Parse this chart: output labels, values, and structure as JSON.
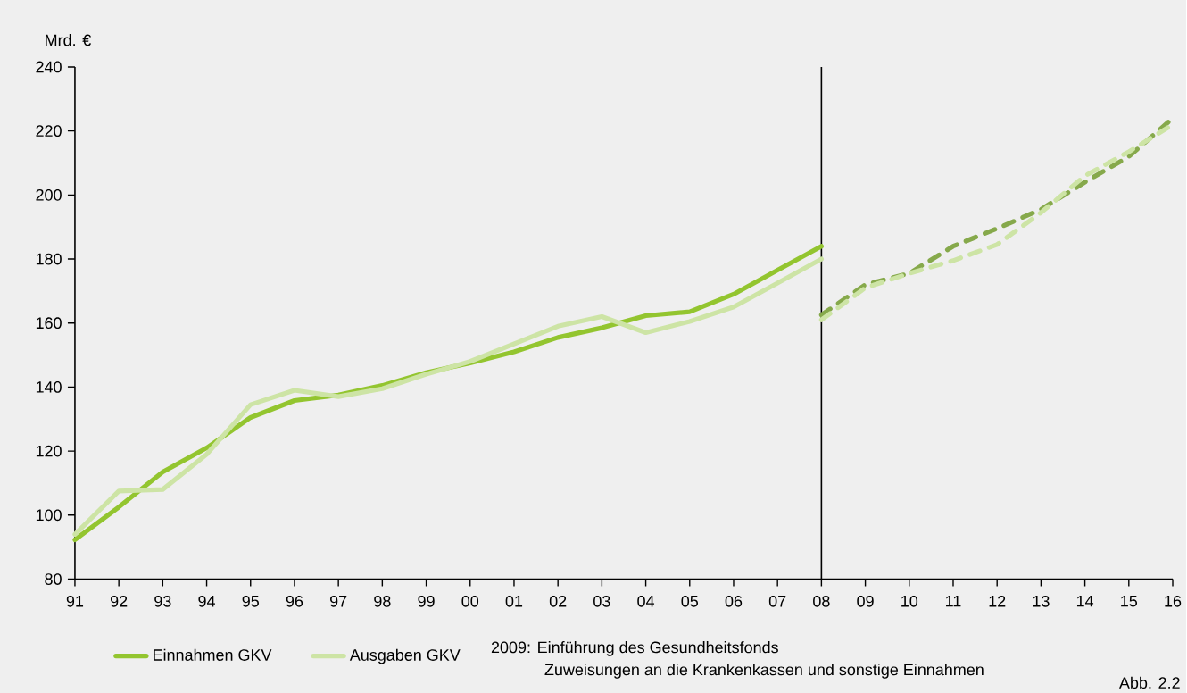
{
  "chart_data": {
    "type": "line",
    "ylabel": "Mrd. €",
    "categories": [
      "91",
      "92",
      "93",
      "94",
      "95",
      "96",
      "97",
      "98",
      "99",
      "00",
      "01",
      "02",
      "03",
      "04",
      "05",
      "06",
      "07",
      "08",
      "09",
      "10",
      "11",
      "12",
      "13",
      "14",
      "15",
      "16"
    ],
    "series": [
      {
        "name": "Einnahmen GKV",
        "color": "#93c52f",
        "line_style": "solid",
        "values": [
          92.3,
          102.5,
          113.5,
          121,
          130.5,
          135.8,
          137.5,
          140.5,
          144.5,
          147.5,
          151,
          155.5,
          158.5,
          162.3,
          163.5,
          169,
          176.5,
          184,
          null,
          null,
          null,
          null,
          null,
          null,
          null,
          null
        ]
      },
      {
        "name": "Ausgaben GKV",
        "color": "#cde4a5",
        "line_style": "solid",
        "values": [
          94,
          107.5,
          108,
          119,
          134.5,
          139,
          137,
          139.5,
          144,
          148,
          153.5,
          159,
          162,
          157,
          160.5,
          165,
          172.5,
          180,
          null,
          null,
          null,
          null,
          null,
          null,
          null,
          null
        ]
      },
      {
        "color": "#86a94b",
        "line_style": "dashed",
        "values": [
          null,
          null,
          null,
          null,
          null,
          null,
          null,
          null,
          null,
          null,
          null,
          null,
          null,
          null,
          null,
          null,
          null,
          162.5,
          172,
          175.5,
          184,
          189.5,
          195.5,
          204,
          212,
          224
        ]
      },
      {
        "color": "#cde4a5",
        "line_style": "dashed",
        "values": [
          null,
          null,
          null,
          null,
          null,
          null,
          null,
          null,
          null,
          null,
          null,
          null,
          null,
          null,
          null,
          null,
          null,
          161,
          171,
          175.5,
          179.5,
          184.5,
          194.5,
          206,
          213.5,
          222
        ]
      }
    ],
    "ylim": [
      80,
      240
    ],
    "yticks": [
      80,
      100,
      120,
      140,
      160,
      180,
      200,
      220,
      240
    ],
    "ref_lines": [
      {
        "axis": "x",
        "value": "08",
        "color": "#000000"
      }
    ],
    "grid": false,
    "legend": "bottom",
    "marker": "none",
    "annotations": [
      "2009:  Einführung des Gesundheitsfonds",
      "Zuweisungen an die Krankenkassen und sonstige Einnahmen",
      "Abb. 2.2"
    ]
  }
}
